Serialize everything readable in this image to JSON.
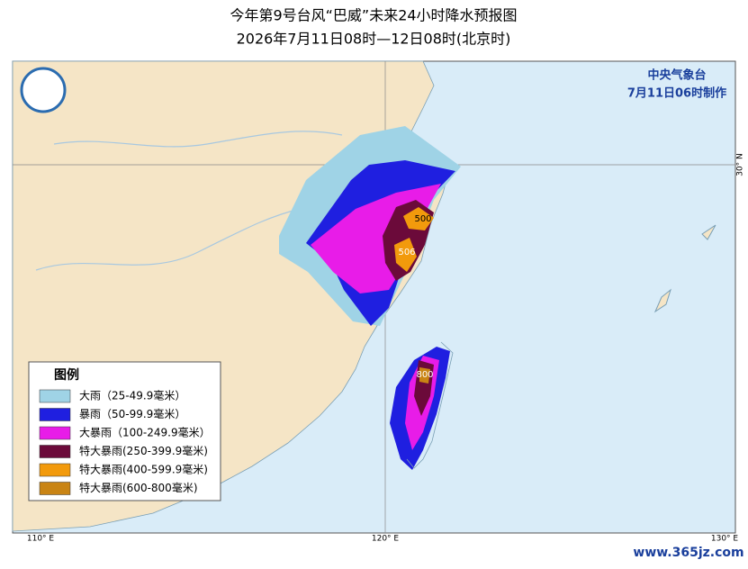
{
  "header": {
    "title": "今年第9号台风“巴威”未来24小时降水预报图",
    "subtitle": "2026年7月11日08时—12日08时(北京时)"
  },
  "issuer": {
    "name": "中央气象台",
    "time": "7月11日06时制作"
  },
  "legend": {
    "title": "图例",
    "items": [
      {
        "label": "大雨（25-49.9毫米）",
        "color": "#9fd3e6"
      },
      {
        "label": "暴雨（50-99.9毫米）",
        "color": "#1f1fe0"
      },
      {
        "label": "大暴雨（100-249.9毫米）",
        "color": "#e81ce8"
      },
      {
        "label": "特大暴雨(250-399.9毫米)",
        "color": "#6b0a3a"
      },
      {
        "label": "特大暴雨(400-599.9毫米)",
        "color": "#f29a0c"
      },
      {
        "label": "特大暴雨(600-800毫米)",
        "color": "#c98414"
      }
    ]
  },
  "map": {
    "maxima": [
      "500",
      "506",
      "800"
    ]
  },
  "axes": {
    "lon_labels": [
      "110° E",
      "120° E",
      "130° E"
    ],
    "lat_labels": [
      "30° N"
    ]
  },
  "watermark": "www.365jz.com"
}
